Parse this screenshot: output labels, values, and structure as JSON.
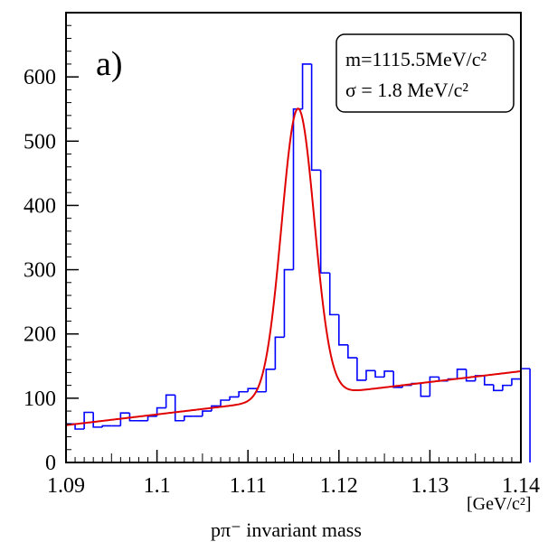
{
  "chart_data": {
    "type": "line",
    "panel_label": "a)",
    "xlabel": "pπ⁻   invariant mass",
    "xunit": "[GeV/c²]",
    "ylabel": "",
    "xlim": [
      1.09,
      1.14
    ],
    "ylim": [
      0,
      700
    ],
    "grid": false,
    "x_ticks": [
      {
        "v": 1.09,
        "label": "1.09"
      },
      {
        "v": 1.1,
        "label": "1.1"
      },
      {
        "v": 1.11,
        "label": "1.11"
      },
      {
        "v": 1.12,
        "label": "1.12"
      },
      {
        "v": 1.13,
        "label": "1.13"
      },
      {
        "v": 1.14,
        "label": "1.14"
      }
    ],
    "y_ticks": [
      {
        "v": 0,
        "label": "0"
      },
      {
        "v": 100,
        "label": "100"
      },
      {
        "v": 200,
        "label": "200"
      },
      {
        "v": 300,
        "label": "300"
      },
      {
        "v": 400,
        "label": "400"
      },
      {
        "v": 500,
        "label": "500"
      },
      {
        "v": 600,
        "label": "600"
      }
    ],
    "legend": {
      "placement": "top-right",
      "line1": "m=1115.5MeV/c²",
      "line2": "σ =   1.8  MeV/c²"
    },
    "series": [
      {
        "kind": "histogram",
        "color": "#0000ff",
        "bin_width": 0.001,
        "x_start": 1.09,
        "values": [
          60,
          52,
          78,
          55,
          57,
          57,
          77,
          65,
          65,
          72,
          85,
          105,
          65,
          72,
          72,
          80,
          88,
          97,
          102,
          110,
          115,
          110,
          145,
          195,
          300,
          550,
          620,
          455,
          295,
          230,
          183,
          163,
          128,
          143,
          133,
          142,
          117,
          120,
          123,
          103,
          133,
          127,
          130,
          145,
          127,
          135,
          121,
          112,
          120,
          130,
          146
        ]
      },
      {
        "kind": "fit",
        "color": "#e00000",
        "mean": 1.1155,
        "sigma": 0.0018,
        "amplitude": 450,
        "background": {
          "x0": 1.09,
          "y0": 58,
          "x1": 1.14,
          "y1": 142
        }
      }
    ]
  }
}
